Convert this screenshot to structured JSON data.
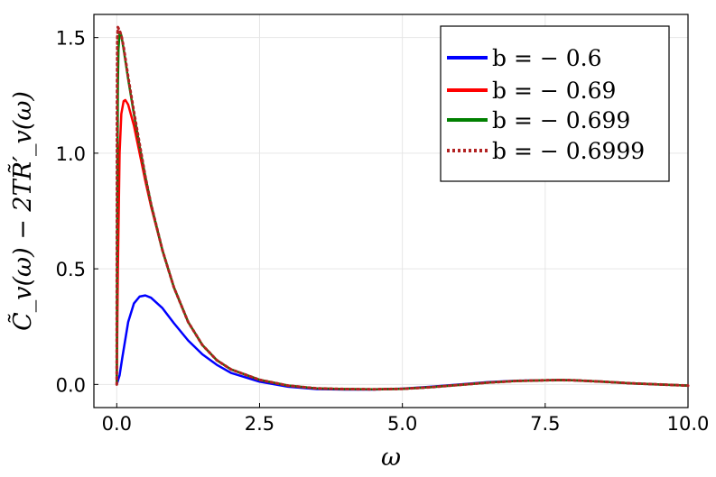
{
  "chart_data": {
    "type": "line",
    "xlabel": "ω",
    "ylabel": "C̃_v(ω) − 2TR̃′_v(ω)",
    "xlim": [
      -0.4,
      10.0
    ],
    "ylim": [
      -0.1,
      1.6
    ],
    "xticks": [
      0.0,
      2.5,
      5.0,
      7.5,
      10.0
    ],
    "xtick_labels": [
      "0.0",
      "2.5",
      "5.0",
      "7.5",
      "10.0"
    ],
    "yticks": [
      0.0,
      0.5,
      1.0,
      1.5
    ],
    "ytick_labels": [
      "0.0",
      "0.5",
      "1.0",
      "1.5"
    ],
    "grid": true,
    "legend_position": "top-right",
    "series": [
      {
        "name": "b = − 0.6",
        "color": "#0000ff",
        "style": "solid",
        "x": [
          0,
          0.05,
          0.1,
          0.2,
          0.3,
          0.4,
          0.5,
          0.6,
          0.8,
          1.0,
          1.25,
          1.5,
          1.75,
          2.0,
          2.5,
          3.0,
          3.5,
          4.0,
          4.5,
          5.0,
          5.5,
          6.0,
          6.5,
          7.0,
          7.5,
          7.75,
          8.0,
          8.5,
          9.0,
          9.5,
          10.0
        ],
        "y": [
          0,
          0.04,
          0.12,
          0.27,
          0.35,
          0.38,
          0.385,
          0.375,
          0.33,
          0.265,
          0.19,
          0.13,
          0.085,
          0.05,
          0.012,
          -0.01,
          -0.02,
          -0.022,
          -0.022,
          -0.018,
          -0.01,
          0.0,
          0.01,
          0.016,
          0.018,
          0.019,
          0.018,
          0.012,
          0.005,
          0.0,
          -0.005
        ]
      },
      {
        "name": "b = − 0.69",
        "color": "#ff0000",
        "style": "solid",
        "x": [
          0,
          0.02,
          0.05,
          0.08,
          0.12,
          0.15,
          0.2,
          0.3,
          0.4,
          0.5,
          0.6,
          0.8,
          1.0,
          1.25,
          1.5,
          1.75,
          2.0,
          2.5,
          3.0,
          3.5,
          4.0,
          4.5,
          5.0,
          5.5,
          6.0,
          6.5,
          7.0,
          7.5,
          7.75,
          8.0,
          8.5,
          9.0,
          9.5,
          10.0
        ],
        "y": [
          0,
          0.5,
          1.0,
          1.17,
          1.225,
          1.23,
          1.21,
          1.12,
          1.0,
          0.88,
          0.77,
          0.58,
          0.42,
          0.27,
          0.17,
          0.105,
          0.065,
          0.02,
          -0.005,
          -0.017,
          -0.02,
          -0.021,
          -0.019,
          -0.012,
          -0.002,
          0.008,
          0.015,
          0.018,
          0.019,
          0.018,
          0.012,
          0.005,
          0.0,
          -0.005
        ]
      },
      {
        "name": "b = − 0.699",
        "color": "#008000",
        "style": "solid",
        "x": [
          0,
          0.01,
          0.02,
          0.03,
          0.05,
          0.08,
          0.12,
          0.2,
          0.3,
          0.4,
          0.5,
          0.6,
          0.8,
          1.0,
          1.25,
          1.5,
          1.75,
          2.0,
          2.5,
          3.0,
          3.5,
          4.0,
          4.5,
          5.0,
          5.5,
          6.0,
          6.5,
          7.0,
          7.5,
          7.75,
          8.0,
          8.5,
          9.0,
          9.5,
          10.0
        ],
        "y": [
          0,
          0.8,
          1.3,
          1.45,
          1.52,
          1.51,
          1.45,
          1.32,
          1.17,
          1.03,
          0.9,
          0.78,
          0.58,
          0.42,
          0.27,
          0.17,
          0.105,
          0.065,
          0.02,
          -0.005,
          -0.017,
          -0.02,
          -0.021,
          -0.019,
          -0.012,
          -0.002,
          0.008,
          0.015,
          0.018,
          0.019,
          0.018,
          0.012,
          0.005,
          0.0,
          -0.005
        ]
      },
      {
        "name": "b = − 0.6999",
        "color": "#b22222",
        "style": "dotted",
        "x": [
          0,
          0.005,
          0.01,
          0.02,
          0.03,
          0.05,
          0.08,
          0.12,
          0.2,
          0.3,
          0.4,
          0.5,
          0.6,
          0.8,
          1.0,
          1.25,
          1.5,
          1.75,
          2.0,
          2.5,
          3.0,
          3.5,
          4.0,
          4.5,
          5.0,
          5.5,
          6.0,
          6.5,
          7.0,
          7.5,
          7.75,
          8.0,
          8.5,
          9.0,
          9.5,
          10.0
        ],
        "y": [
          0,
          1.2,
          1.5,
          1.545,
          1.54,
          1.53,
          1.51,
          1.46,
          1.33,
          1.18,
          1.04,
          0.9,
          0.78,
          0.58,
          0.42,
          0.27,
          0.17,
          0.105,
          0.065,
          0.02,
          -0.005,
          -0.017,
          -0.02,
          -0.021,
          -0.019,
          -0.012,
          -0.002,
          0.008,
          0.015,
          0.018,
          0.019,
          0.018,
          0.012,
          0.005,
          0.0,
          -0.005
        ]
      }
    ]
  }
}
